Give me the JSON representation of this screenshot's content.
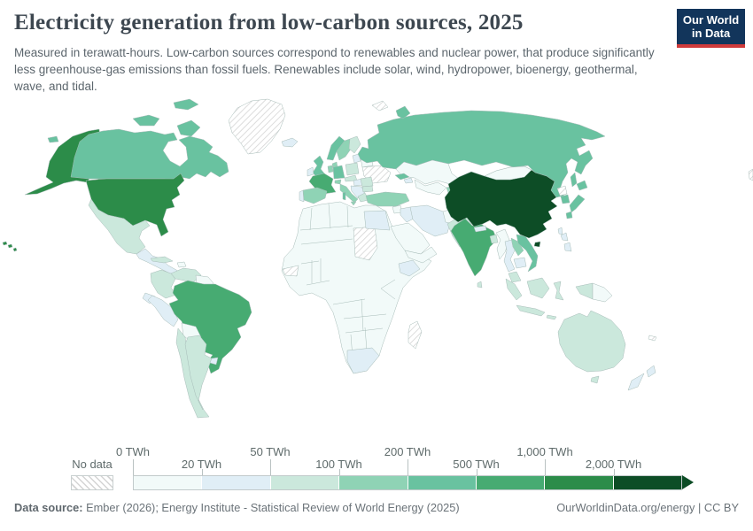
{
  "header": {
    "title": "Electricity generation from low-carbon sources, 2025",
    "subtitle": "Measured in terawatt-hours. Low-carbon sources correspond to renewables and nuclear power, that produce significantly less greenhouse-gas emissions than fossil fuels. Renewables include solar, wind, hydropower, bioenergy, geothermal, wave, and tidal.",
    "logo": {
      "line1": "Our World",
      "line2": "in Data",
      "bg_color": "#12355b",
      "bar_color": "#cf3a3a"
    }
  },
  "legend": {
    "no_data": {
      "label": "No data"
    },
    "unit": "TWh",
    "bins": [
      {
        "label": "0 TWh",
        "row": "top"
      },
      {
        "label": "20 TWh",
        "row": "bottom"
      },
      {
        "label": "50 TWh",
        "row": "top"
      },
      {
        "label": "100 TWh",
        "row": "bottom"
      },
      {
        "label": "200 TWh",
        "row": "top"
      },
      {
        "label": "500 TWh",
        "row": "bottom"
      },
      {
        "label": "1,000 TWh",
        "row": "top"
      },
      {
        "label": "2,000 TWh",
        "row": "bottom"
      }
    ],
    "colors": [
      "#f2faf9",
      "#e0eef6",
      "#cbe8dc",
      "#8fd3b5",
      "#69c2a0",
      "#47ab72",
      "#2c8c49",
      "#0d4d26"
    ],
    "no_data_hatch_color": "#d4d4d4"
  },
  "chart_data": {
    "type": "choropleth-map",
    "title": "Electricity generation from low-carbon sources, 2025",
    "unit": "TWh",
    "bin_ranges": [
      "0-20",
      "20-50",
      "50-100",
      "100-200",
      "200-500",
      "500-1,000",
      "1,000-2,000",
      "2,000+",
      "No data"
    ],
    "legend_position": "bottom",
    "notable_readings": {
      "china": "2,000+ TWh",
      "united-states": "1,000-2,000 TWh",
      "brazil": "500-1,000 TWh",
      "france": "500-1,000 TWh",
      "india": "500-1,000 TWh",
      "canada": "200-500 TWh",
      "russia": "200-500 TWh",
      "japan": "200-500 TWh",
      "germany": "200-500 TWh",
      "australia": "50-100 TWh",
      "mexico": "50-100 TWh",
      "greenland": "No data",
      "ukraine": "No data",
      "sudan": "No data",
      "madagascar": "No data",
      "north-korea": "No data"
    }
  },
  "map": {
    "countries": {
      "united-states": 7,
      "canada": 5,
      "greenland": 0,
      "iceland": 2,
      "mexico": 3,
      "central-america": 2,
      "cuba": 3,
      "hispaniola": 1,
      "colombia": 3,
      "venezuela": 3,
      "guyanas": 1,
      "ecuador": 2,
      "peru": 2,
      "brazil": 6,
      "bolivia": 1,
      "paraguay": 1,
      "chile": 3,
      "argentina": 3,
      "uruguay": 2,
      "africa-mainland": 1,
      "western-sahara": 0,
      "sudan": 0,
      "egypt": 2,
      "ethiopia": 2,
      "south-africa": 2,
      "madagascar": 0,
      "united-kingdom": 5,
      "ireland": 2,
      "norway": 5,
      "sweden": 4,
      "finland": 3,
      "denmark": 4,
      "germany": 5,
      "benelux": 4,
      "poland": 3,
      "baltics": 2,
      "belarus": 1,
      "ukraine": 0,
      "france": 6,
      "spain": 4,
      "portugal": 2,
      "switzerland": 4,
      "italy": 4,
      "corsica-sardinia": 5,
      "austria-czechia": 3,
      "hungary-slovakia": 2,
      "romania": 3,
      "balkans": 2,
      "bulgaria": 3,
      "greece": 3,
      "russia": 5,
      "svalbard": 0,
      "kazakhstan": 1,
      "central-asia": 1,
      "kyrgyzstan-tajikistan": 4,
      "georgia": 5,
      "azerbaijan": 2,
      "turkey": 4,
      "syria": 1,
      "iraq": 2,
      "iran": 2,
      "saudi-arabia": 1,
      "yemen-oman": 1,
      "afghanistan": 1,
      "pakistan": 3,
      "india": 6,
      "sri-lanka": 3,
      "nepal": 2,
      "bangladesh": 3,
      "myanmar": 1,
      "thailand": 2,
      "laos": 4,
      "vietnam": 5,
      "cambodia": 2,
      "malaysia": 3,
      "china": 8,
      "taiwan": 2,
      "mongolia": 1,
      "north-korea": 0,
      "south-korea": 5,
      "japan": 5,
      "philippines": 2,
      "indonesia": 3,
      "papua-new-guinea": 1,
      "australia": 3,
      "new-zealand": 2,
      "new-caledonia": 0,
      "antimeridian-fragment": 0
    }
  },
  "footer": {
    "source_label": "Data source:",
    "source_text": " Ember (2026); Energy Institute - Statistical Review of World Energy (2025)",
    "link": "OurWorldinData.org/energy",
    "separator": " | ",
    "license": "CC BY"
  }
}
